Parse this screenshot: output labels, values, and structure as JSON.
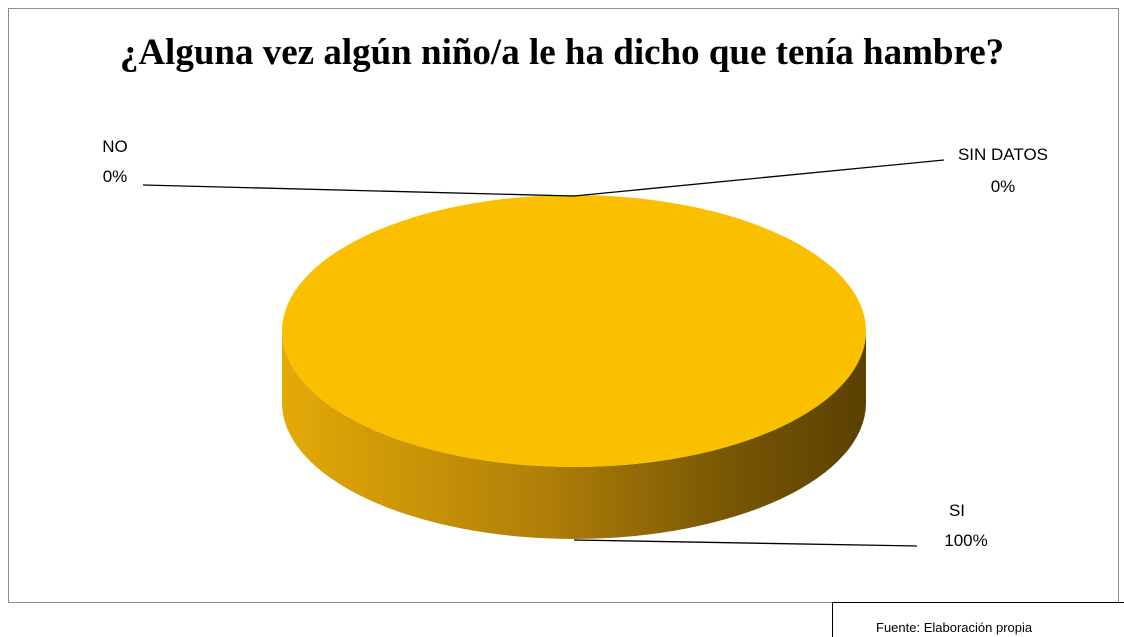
{
  "chart_data": {
    "type": "pie",
    "title": "¿Alguna vez algún niño/a le ha dicho que tenía hambre?",
    "categories": [
      "SI",
      "NO",
      "SIN DATOS"
    ],
    "values": [
      100,
      0,
      0
    ],
    "value_labels": [
      "100%",
      "0%",
      "0%"
    ],
    "colors": {
      "SI": "#FAC000"
    },
    "style": "3d-pie",
    "legend": "none",
    "data_labels": "outside-with-leader-lines"
  },
  "source_note": "Fuente: Elaboración propia"
}
